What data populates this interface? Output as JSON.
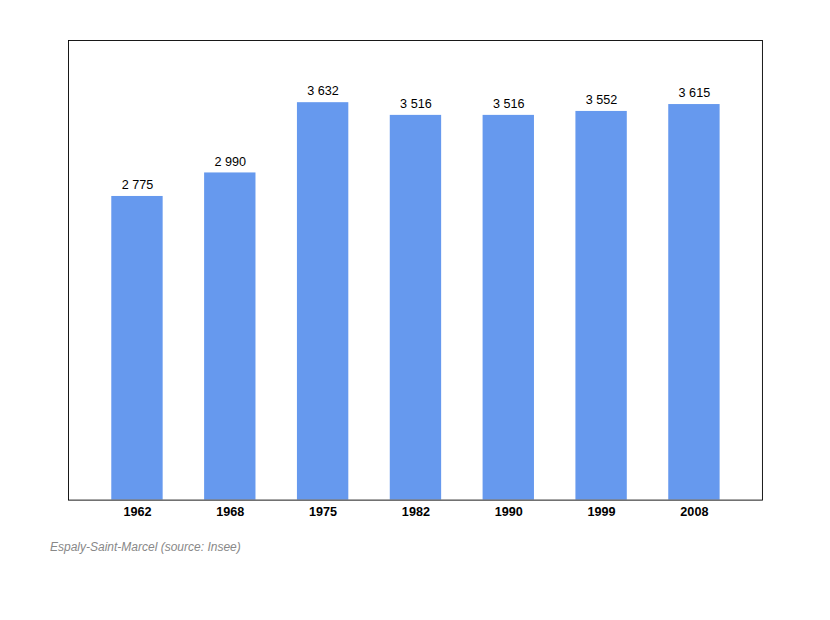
{
  "chart_data": {
    "type": "bar",
    "caption": "Espaly-Saint-Marcel    (source: Insee)",
    "categories": [
      "1962",
      "1968",
      "1975",
      "1982",
      "1990",
      "1999",
      "2008"
    ],
    "values": [
      2775,
      2990,
      3632,
      3516,
      3516,
      3552,
      3615
    ],
    "value_labels": [
      "2 775",
      "2 990",
      "3 632",
      "3 516",
      "3 516",
      "3 552",
      "3 615"
    ],
    "data_labels": true,
    "color": "#6699ee",
    "ylim": [
      0,
      4200
    ],
    "yticks": [],
    "grid": false,
    "tick_labels": "x"
  }
}
